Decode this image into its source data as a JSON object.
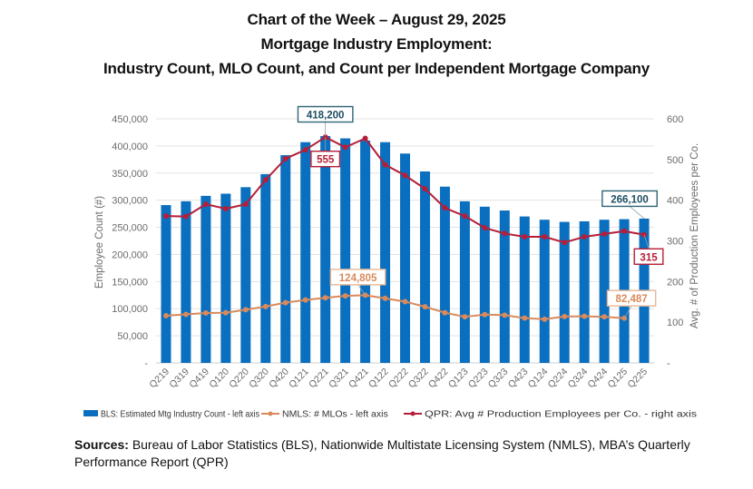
{
  "title": {
    "line1": "Chart of the Week – August 29, 2025",
    "line2": "Mortgage Industry Employment:",
    "line3": "Industry Count, MLO Count, and Count per Independent Mortgage Company"
  },
  "sources": {
    "label": "Sources:",
    "text": "Bureau of Labor Statistics (BLS), Nationwide Multistate Licensing System (NMLS), MBA’s Quarterly Performance Report (QPR)"
  },
  "colors": {
    "bls": "#0B6FBF",
    "nmls": "#D98A5C",
    "qpr": "#B51E38",
    "grid": "#E3E3E3",
    "axis_text": "#6B6B6B",
    "bls_label_border": "#2F6475",
    "bls_label_text": "#1E4E62"
  },
  "chart_data": {
    "type": "bar",
    "title": "Mortgage Industry Employment: Industry Count, MLO Count, and Count per Independent Mortgage Company",
    "categories": [
      "Q219",
      "Q319",
      "Q419",
      "Q120",
      "Q220",
      "Q320",
      "Q420",
      "Q121",
      "Q221",
      "Q321",
      "Q421",
      "Q122",
      "Q222",
      "Q322",
      "Q422",
      "Q123",
      "Q223",
      "Q323",
      "Q423",
      "Q124",
      "Q224",
      "Q324",
      "Q424",
      "Q125",
      "Q225"
    ],
    "ylabel": "Employee Count (#)",
    "y2label": "Avg. # of Production Employees per Co.",
    "ylim": [
      0,
      450000
    ],
    "y2lim": [
      0,
      600
    ],
    "yticks": [
      0,
      50000,
      100000,
      150000,
      200000,
      250000,
      300000,
      350000,
      400000,
      450000
    ],
    "ytick_labels": [
      "-",
      "50,000",
      "100,000",
      "150,000",
      "200,000",
      "250,000",
      "300,000",
      "350,000",
      "400,000",
      "450,000"
    ],
    "y2ticks": [
      0,
      100,
      200,
      300,
      400,
      500,
      600
    ],
    "y2tick_labels": [
      "-",
      "100",
      "200",
      "300",
      "400",
      "500",
      "600"
    ],
    "grid": true,
    "legend_position": "bottom",
    "series": [
      {
        "name": "BLS: Estimated Mtg Industry Count - left axis",
        "type": "bar",
        "axis": "left",
        "values": [
          291000,
          298000,
          308000,
          312000,
          324000,
          348000,
          383000,
          407000,
          418200,
          414000,
          410000,
          407000,
          386000,
          353000,
          325000,
          298000,
          288000,
          281000,
          270000,
          264000,
          260000,
          261000,
          264000,
          265000,
          266100
        ]
      },
      {
        "name": "NMLS:  # MLOs - left axis",
        "type": "line",
        "axis": "left",
        "values": [
          87000,
          89500,
          92000,
          92500,
          98000,
          104000,
          111000,
          116000,
          120000,
          123500,
          124805,
          119000,
          113000,
          103500,
          92500,
          85000,
          89000,
          88000,
          82500,
          80500,
          85500,
          86000,
          85000,
          82487,
          null
        ]
      },
      {
        "name": "QPR:  Avg # Production Employees per Co. - right axis",
        "type": "line",
        "axis": "right",
        "values": [
          361,
          360,
          390,
          379,
          390,
          450,
          502,
          524,
          555,
          530,
          552,
          487,
          461,
          428,
          381,
          361,
          332,
          318,
          310,
          310,
          296,
          310,
          317,
          324,
          315
        ]
      }
    ],
    "annotations": [
      {
        "series": "BLS: Estimated Mtg Industry Count - left axis",
        "category": "Q221",
        "text": "418,200"
      },
      {
        "series": "QPR:  Avg # Production Employees per Co. - right axis",
        "category": "Q221",
        "text": "555"
      },
      {
        "series": "NMLS:  # MLOs - left axis",
        "category": "Q421",
        "text": "124,805"
      },
      {
        "series": "BLS: Estimated Mtg Industry Count - left axis",
        "category": "Q225",
        "text": "266,100"
      },
      {
        "series": "QPR:  Avg # Production Employees per Co. - right axis",
        "category": "Q225",
        "text": "315"
      },
      {
        "series": "NMLS:  # MLOs - left axis",
        "category": "Q125",
        "text": "82,487"
      }
    ]
  }
}
